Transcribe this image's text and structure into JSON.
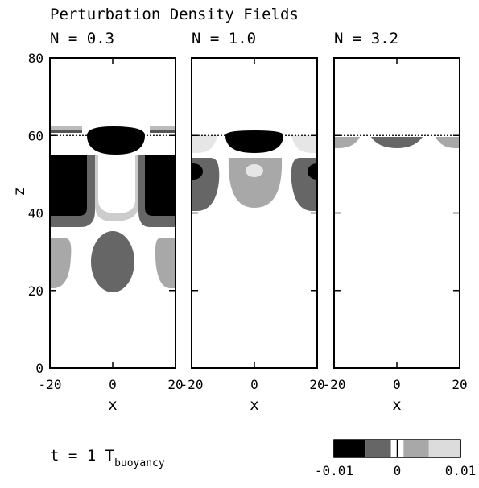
{
  "title": "Perturbation Density Fields",
  "chart_data": [
    {
      "type": "contour",
      "title": "N = 0.3",
      "xlabel": "x",
      "ylabel": "z",
      "xlim": [
        -20,
        20
      ],
      "ylim": [
        0,
        80
      ],
      "xticks": [
        -20,
        0,
        20
      ],
      "yticks": [
        0,
        20,
        40,
        60,
        80
      ],
      "ytick_labels": true
    },
    {
      "type": "contour",
      "title": "N = 1.0",
      "xlabel": "x",
      "xlim": [
        -20,
        20
      ],
      "ylim": [
        0,
        80
      ],
      "xticks": [
        -20,
        0,
        20
      ],
      "yticks": [
        0,
        20,
        40,
        60,
        80
      ],
      "ytick_labels": false
    },
    {
      "type": "contour",
      "title": "N = 3.2",
      "xlabel": "x",
      "xlim": [
        -20,
        20
      ],
      "ylim": [
        0,
        80
      ],
      "xticks": [
        -20,
        0,
        20
      ],
      "yticks": [
        0,
        20,
        40,
        60,
        80
      ],
      "ytick_labels": false
    }
  ],
  "annotation": {
    "text": "t = 1 T",
    "subscript": "buoyancy"
  },
  "colorbar": {
    "lim": [
      -0.01,
      0.01
    ],
    "levels": [
      -0.01,
      -0.005,
      -0.001,
      0.001,
      0.005,
      0.01
    ],
    "colors": [
      "#000000",
      "#666666",
      "#ffffff",
      "#a8a8a8",
      "#dcdcdc"
    ],
    "ticks": [
      {
        "value": -0.01,
        "label": "-0.01"
      },
      0,
      0.01
    ]
  }
}
